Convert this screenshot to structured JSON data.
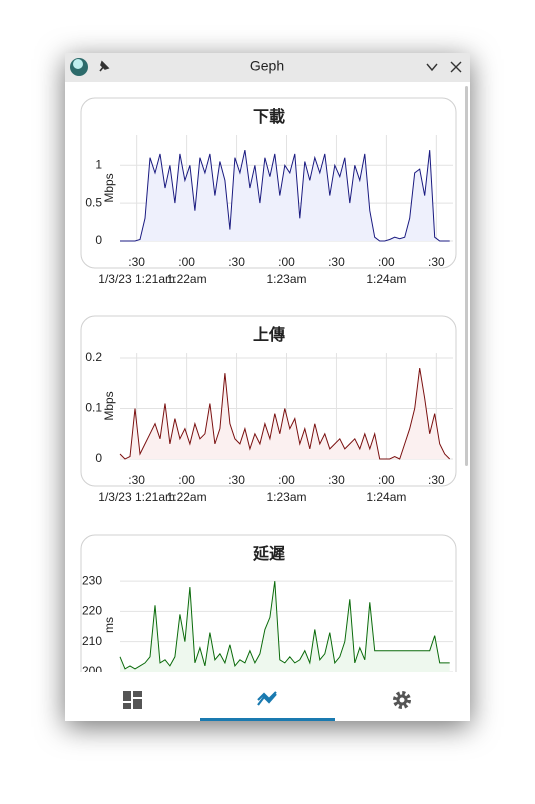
{
  "window": {
    "title": "Geph"
  },
  "chart_data": [
    {
      "type": "line",
      "title": "下載",
      "y_label": "Mbps",
      "color": "#1a1a80",
      "fill": "#eef0fc",
      "x": [
        20,
        23,
        26,
        29,
        32,
        35,
        38,
        41,
        44,
        47,
        50,
        53,
        56,
        59,
        62,
        65,
        68,
        71,
        74,
        77,
        80,
        83,
        86,
        89,
        92,
        95,
        98,
        101,
        104,
        107,
        110,
        113,
        116,
        119,
        122,
        125,
        128,
        131,
        134,
        137,
        140,
        143,
        146,
        149,
        152,
        155,
        158,
        161,
        164,
        167,
        170,
        173,
        176,
        179,
        182,
        185,
        188,
        191,
        194,
        197,
        200,
        203,
        206,
        209,
        212,
        215,
        218
      ],
      "values": [
        0,
        0,
        0,
        0,
        0.02,
        0.3,
        1.1,
        0.9,
        1.15,
        0.7,
        1.0,
        0.5,
        1.15,
        0.8,
        1.0,
        0.4,
        1.1,
        0.9,
        1.15,
        0.6,
        1.05,
        0.8,
        0.15,
        1.1,
        0.9,
        1.2,
        0.7,
        1.0,
        0.5,
        1.1,
        0.85,
        1.15,
        0.6,
        1.0,
        0.9,
        1.15,
        0.3,
        1.05,
        0.8,
        1.1,
        0.9,
        1.15,
        0.6,
        1.0,
        0.85,
        1.1,
        0.5,
        1.0,
        0.8,
        1.15,
        0.4,
        0.05,
        0,
        0,
        0.02,
        0.05,
        0.03,
        0.05,
        0.3,
        0.9,
        0.95,
        0.6,
        1.2,
        0.05,
        0,
        0,
        0
      ],
      "xlim": [
        20,
        220
      ],
      "ylim": [
        0,
        1.4
      ],
      "yticks": [
        0,
        0.5,
        1
      ],
      "xticks": [
        {
          "value": 30,
          "label": ":30"
        },
        {
          "value": 60,
          "label": ":00"
        },
        {
          "value": 90,
          "label": ":30"
        },
        {
          "value": 120,
          "label": ":00"
        },
        {
          "value": 150,
          "label": ":30"
        },
        {
          "value": 180,
          "label": ":00"
        },
        {
          "value": 210,
          "label": ":30"
        }
      ],
      "date_ticks": [
        {
          "value": 30,
          "label": "1/3/23 1:21am"
        },
        {
          "value": 60,
          "label": "1:22am"
        },
        {
          "value": 120,
          "label": "1:23am"
        },
        {
          "value": 180,
          "label": "1:24am"
        }
      ],
      "grid": true
    },
    {
      "type": "line",
      "title": "上傳",
      "y_label": "Mbps",
      "color": "#7a1010",
      "fill": "#fbf0f0",
      "x": [
        20,
        23,
        26,
        29,
        32,
        35,
        38,
        41,
        44,
        47,
        50,
        53,
        56,
        59,
        62,
        65,
        68,
        71,
        74,
        77,
        80,
        83,
        86,
        89,
        92,
        95,
        98,
        101,
        104,
        107,
        110,
        113,
        116,
        119,
        122,
        125,
        128,
        131,
        134,
        137,
        140,
        143,
        146,
        149,
        152,
        155,
        158,
        161,
        164,
        167,
        170,
        173,
        176,
        179,
        182,
        185,
        188,
        191,
        194,
        197,
        200,
        203,
        206,
        209,
        212,
        215,
        218
      ],
      "values": [
        0.01,
        0,
        0.005,
        0.1,
        0.01,
        0.03,
        0.05,
        0.07,
        0.04,
        0.11,
        0.03,
        0.08,
        0.04,
        0.06,
        0.03,
        0.07,
        0.04,
        0.05,
        0.11,
        0.03,
        0.06,
        0.17,
        0.07,
        0.04,
        0.03,
        0.06,
        0.02,
        0.05,
        0.03,
        0.07,
        0.04,
        0.09,
        0.05,
        0.1,
        0.06,
        0.08,
        0.03,
        0.06,
        0.02,
        0.07,
        0.03,
        0.05,
        0.02,
        0.03,
        0.04,
        0.02,
        0.03,
        0.04,
        0.02,
        0.05,
        0.02,
        0.05,
        0,
        0,
        0,
        0.005,
        0,
        0.03,
        0.06,
        0.1,
        0.18,
        0.12,
        0.05,
        0.09,
        0.03,
        0.01,
        0
      ],
      "xlim": [
        20,
        220
      ],
      "ylim": [
        0,
        0.21
      ],
      "yticks": [
        0,
        0.1,
        0.2
      ],
      "xticks": [
        {
          "value": 30,
          "label": ":30"
        },
        {
          "value": 60,
          "label": ":00"
        },
        {
          "value": 90,
          "label": ":30"
        },
        {
          "value": 120,
          "label": ":00"
        },
        {
          "value": 150,
          "label": ":30"
        },
        {
          "value": 180,
          "label": ":00"
        },
        {
          "value": 210,
          "label": ":30"
        }
      ],
      "date_ticks": [
        {
          "value": 30,
          "label": "1/3/23 1:21am"
        },
        {
          "value": 60,
          "label": "1:22am"
        },
        {
          "value": 120,
          "label": "1:23am"
        },
        {
          "value": 180,
          "label": "1:24am"
        }
      ],
      "grid": true
    },
    {
      "type": "line",
      "title": "延遲",
      "y_label": "ms",
      "color": "#0a6a0a",
      "fill": "#eef8ee",
      "x": [
        20,
        23,
        26,
        29,
        32,
        35,
        38,
        41,
        44,
        47,
        50,
        53,
        56,
        59,
        62,
        65,
        68,
        71,
        74,
        77,
        80,
        83,
        86,
        89,
        92,
        95,
        98,
        101,
        104,
        107,
        110,
        113,
        116,
        119,
        122,
        125,
        128,
        131,
        134,
        137,
        140,
        143,
        146,
        149,
        152,
        155,
        158,
        161,
        164,
        167,
        170,
        173,
        176,
        179,
        182,
        185,
        188,
        191,
        194,
        197,
        200,
        203,
        206,
        209,
        212,
        215,
        218
      ],
      "values": [
        205,
        201,
        202,
        201,
        202,
        203,
        205,
        222,
        203,
        204,
        202,
        205,
        219,
        210,
        228,
        203,
        208,
        202,
        213,
        204,
        206,
        203,
        209,
        202,
        204,
        203,
        207,
        203,
        206,
        214,
        218,
        230,
        204,
        203,
        205,
        203,
        204,
        207,
        203,
        214,
        204,
        206,
        213,
        203,
        205,
        210,
        224,
        203,
        208,
        204,
        223,
        207,
        207,
        207,
        207,
        207,
        207,
        207,
        207,
        207,
        207,
        207,
        207,
        212,
        203,
        203,
        203
      ],
      "xlim": [
        20,
        220
      ],
      "ylim": [
        198,
        233
      ],
      "yticks": [
        200,
        210,
        220,
        230
      ],
      "grid": true
    }
  ]
}
